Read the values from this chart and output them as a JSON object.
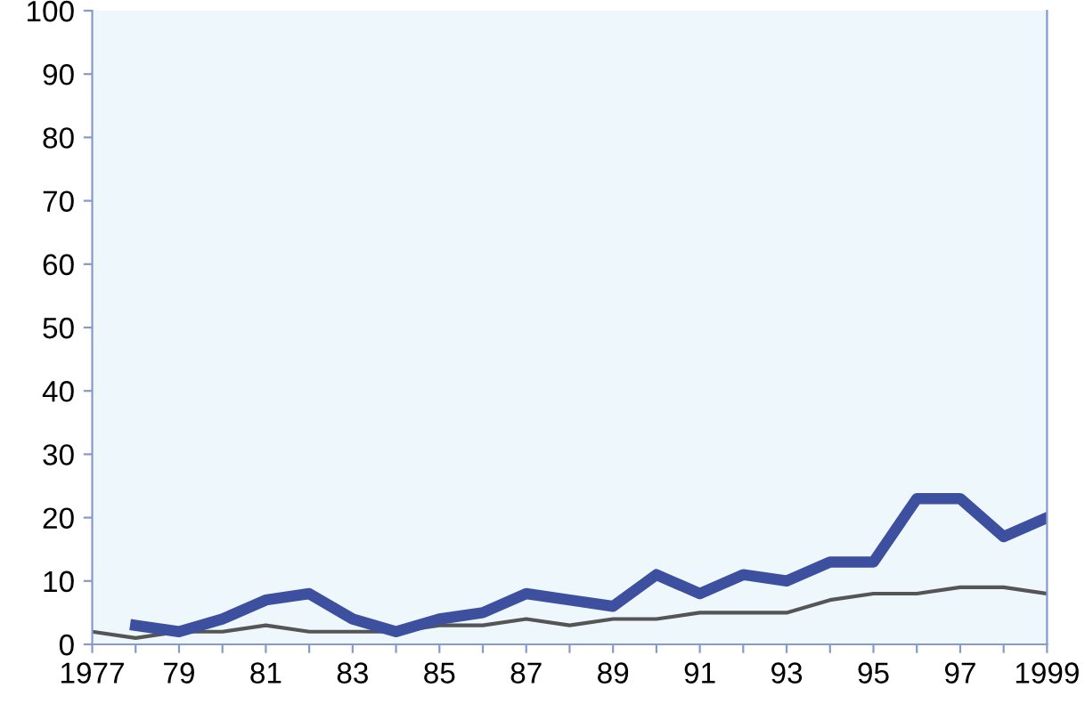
{
  "chart_data": {
    "type": "line",
    "x": [
      1977,
      1978,
      1979,
      1980,
      1981,
      1982,
      1983,
      1984,
      1985,
      1986,
      1987,
      1988,
      1989,
      1990,
      1991,
      1992,
      1993,
      1994,
      1995,
      1996,
      1997,
      1998,
      1999
    ],
    "series": [
      {
        "color": "#555555",
        "values": [
          2,
          1,
          2,
          2,
          3,
          2,
          2,
          2,
          3,
          3,
          4,
          3,
          4,
          4,
          5,
          5,
          5,
          7,
          8,
          8,
          9,
          9,
          8
        ]
      },
      {
        "color": "#3d4f9f",
        "values": [
          null,
          3,
          2,
          4,
          7,
          8,
          4,
          2,
          4,
          5,
          8,
          7,
          6,
          11,
          8,
          11,
          10,
          13,
          13,
          23,
          23,
          17,
          20
        ]
      }
    ],
    "xlim": [
      1977,
      1999
    ],
    "ylim": [
      0,
      100
    ],
    "xticks": [
      1977,
      {
        "value": 1978,
        "label": null
      },
      {
        "value": 1979,
        "label": "79"
      },
      {
        "value": 1980,
        "label": null
      },
      {
        "value": 1981,
        "label": "81"
      },
      {
        "value": 1982,
        "label": null
      },
      {
        "value": 1983,
        "label": "83"
      },
      {
        "value": 1984,
        "label": null
      },
      {
        "value": 1985,
        "label": "85"
      },
      {
        "value": 1986,
        "label": null
      },
      {
        "value": 1987,
        "label": "87"
      },
      {
        "value": 1988,
        "label": null
      },
      {
        "value": 1989,
        "label": "89"
      },
      {
        "value": 1990,
        "label": null
      },
      {
        "value": 1991,
        "label": "91"
      },
      {
        "value": 1992,
        "label": null
      },
      {
        "value": 1993,
        "label": "93"
      },
      {
        "value": 1994,
        "label": null
      },
      {
        "value": 1995,
        "label": "95"
      },
      {
        "value": 1996,
        "label": null
      },
      {
        "value": 1997,
        "label": "97"
      },
      {
        "value": 1998,
        "label": null
      },
      1999
    ],
    "yticks": [
      0,
      10,
      20,
      30,
      40,
      50,
      60,
      70,
      80,
      90,
      100
    ],
    "grid": false,
    "marker": "none",
    "line_style": "solid"
  }
}
